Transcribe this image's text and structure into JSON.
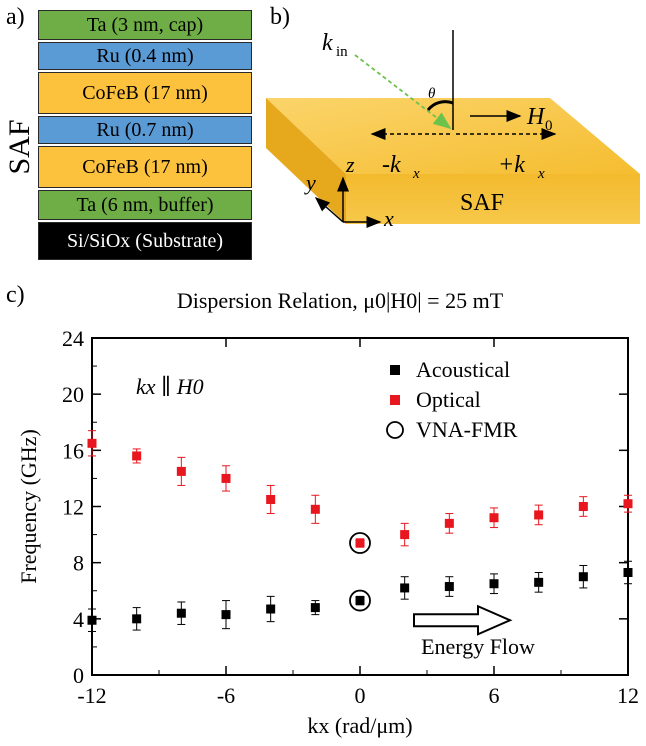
{
  "panel_a": {
    "label": "a)",
    "side_label": "SAF",
    "layers": [
      {
        "text": "Ta (3 nm, cap)",
        "color": "#6fae46"
      },
      {
        "text": "Ru (0.4 nm)",
        "color": "#5b9bd5"
      },
      {
        "text": "CoFeB (17 nm)",
        "color": "#fdc23d"
      },
      {
        "text": "Ru (0.7 nm)",
        "color": "#5b9bd5"
      },
      {
        "text": "CoFeB (17 nm)",
        "color": "#fdc23d"
      },
      {
        "text": "Ta (6 nm, buffer)",
        "color": "#6fae46"
      },
      {
        "text": "Si/SiOx (Substrate)",
        "color": "#000000"
      }
    ]
  },
  "panel_b": {
    "label": "b)",
    "k_in": "k",
    "k_in_sub": "in",
    "theta": "θ",
    "h0": "H",
    "h0_sub": "0",
    "neg_kx": "-k",
    "pos_kx": "+k",
    "kx_sub": "x",
    "slab_label": "SAF",
    "axis_z": "z",
    "axis_y": "y",
    "axis_x": "x"
  },
  "panel_c": {
    "label": "c)"
  },
  "chart_data": {
    "type": "scatter",
    "title": "Dispersion Relation,  μ0|H0| = 25 mT",
    "xlabel": "kx (rad/μm)",
    "ylabel": "Frequency (GHz)",
    "xlim": [
      -12,
      12
    ],
    "ylim": [
      0,
      24
    ],
    "xticks": [
      -12,
      -6,
      0,
      6,
      12
    ],
    "yticks": [
      0,
      4,
      8,
      12,
      16,
      20,
      24
    ],
    "annotation": "kx ∥ H0",
    "energy_label": "Energy Flow",
    "series": [
      {
        "name": "Acoustical",
        "color": "#000000",
        "x": [
          -12,
          -10,
          -8,
          -6,
          -4,
          -2,
          0,
          2,
          4,
          6,
          8,
          10,
          12
        ],
        "y": [
          3.9,
          4.0,
          4.4,
          4.3,
          4.7,
          4.8,
          5.3,
          6.2,
          6.3,
          6.5,
          6.6,
          7.0,
          7.3
        ],
        "err": [
          0.8,
          0.8,
          0.8,
          1.0,
          0.9,
          0.5,
          0.3,
          0.8,
          0.7,
          0.7,
          0.7,
          0.8,
          0.8
        ]
      },
      {
        "name": "Optical",
        "color": "#e8161e",
        "x": [
          -12,
          -10,
          -8,
          -6,
          -4,
          -2,
          0,
          2,
          4,
          6,
          8,
          10,
          12
        ],
        "y": [
          16.5,
          15.6,
          14.5,
          14.0,
          12.5,
          11.8,
          9.4,
          10.0,
          10.8,
          11.2,
          11.4,
          12.0,
          12.2
        ],
        "err": [
          0.9,
          0.5,
          1.0,
          0.9,
          1.0,
          1.0,
          0.3,
          0.8,
          0.7,
          0.7,
          0.7,
          0.7,
          0.6
        ]
      }
    ],
    "vna_fmr": {
      "name": "VNA-FMR",
      "x": [
        0,
        0
      ],
      "y": [
        5.3,
        9.4
      ]
    }
  }
}
